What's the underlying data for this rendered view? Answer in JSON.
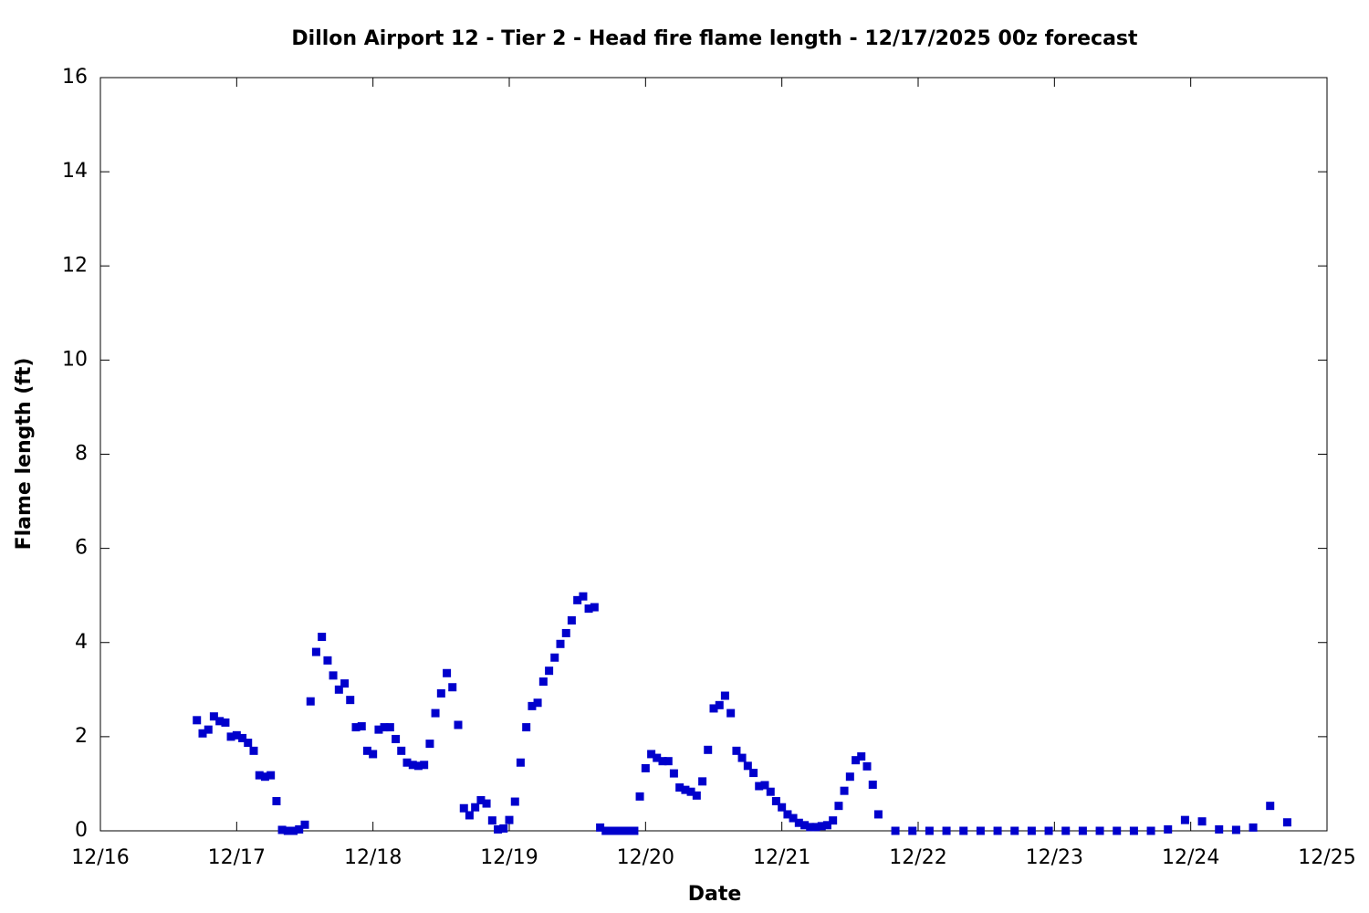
{
  "chart_data": {
    "type": "scatter",
    "title": "Dillon Airport 12 - Tier 2 - Head fire flame length - 12/17/2025 00z forecast",
    "x_label": "Date",
    "y_label": "Flame length (ft)",
    "color": "#0000cc",
    "xlim": [
      16,
      25
    ],
    "xticks": [
      {
        "value": 16,
        "label": "12/16"
      },
      {
        "value": 17,
        "label": "12/17"
      },
      {
        "value": 18,
        "label": "12/18"
      },
      {
        "value": 19,
        "label": "12/19"
      },
      {
        "value": 20,
        "label": "12/20"
      },
      {
        "value": 21,
        "label": "12/21"
      },
      {
        "value": 22,
        "label": "12/22"
      },
      {
        "value": 23,
        "label": "12/23"
      },
      {
        "value": 24,
        "label": "12/24"
      },
      {
        "value": 25,
        "label": "12/25"
      }
    ],
    "ylim": [
      0,
      16
    ],
    "yticks": [
      0,
      2,
      4,
      6,
      8,
      10,
      12,
      14,
      16
    ],
    "grid": false,
    "x": [
      16.708,
      16.75,
      16.792,
      16.833,
      16.875,
      16.917,
      16.958,
      17,
      17.042,
      17.083,
      17.125,
      17.167,
      17.208,
      17.25,
      17.292,
      17.333,
      17.375,
      17.417,
      17.458,
      17.5,
      17.542,
      17.583,
      17.625,
      17.667,
      17.708,
      17.75,
      17.792,
      17.833,
      17.875,
      17.917,
      17.958,
      18,
      18.042,
      18.083,
      18.125,
      18.167,
      18.208,
      18.25,
      18.292,
      18.333,
      18.375,
      18.417,
      18.458,
      18.5,
      18.542,
      18.583,
      18.625,
      18.667,
      18.708,
      18.75,
      18.792,
      18.833,
      18.875,
      18.917,
      18.958,
      19,
      19.042,
      19.083,
      19.125,
      19.167,
      19.208,
      19.25,
      19.292,
      19.333,
      19.375,
      19.417,
      19.458,
      19.5,
      19.542,
      19.583,
      19.625,
      19.667,
      19.708,
      19.75,
      19.792,
      19.833,
      19.875,
      19.917,
      19.958,
      20,
      20.042,
      20.083,
      20.125,
      20.167,
      20.208,
      20.25,
      20.292,
      20.333,
      20.375,
      20.417,
      20.458,
      20.5,
      20.542,
      20.583,
      20.625,
      20.667,
      20.708,
      20.75,
      20.792,
      20.833,
      20.875,
      20.917,
      20.958,
      21,
      21.042,
      21.083,
      21.125,
      21.167,
      21.208,
      21.25,
      21.292,
      21.333,
      21.375,
      21.417,
      21.458,
      21.5,
      21.542,
      21.583,
      21.625,
      21.667,
      21.708,
      21.833,
      21.958,
      22.083,
      22.208,
      22.333,
      22.458,
      22.583,
      22.708,
      22.833,
      22.958,
      23.083,
      23.208,
      23.333,
      23.458,
      23.583,
      23.708,
      23.833,
      23.958,
      24.083,
      24.208,
      24.333,
      24.458,
      24.583,
      24.708
    ],
    "values": [
      2.35,
      2.07,
      2.15,
      2.43,
      2.33,
      2.3,
      2.0,
      2.03,
      1.97,
      1.87,
      1.7,
      1.18,
      1.15,
      1.18,
      0.63,
      0.02,
      0,
      0,
      0.03,
      0.13,
      2.75,
      3.8,
      4.12,
      3.62,
      3.3,
      3.0,
      3.13,
      2.78,
      2.2,
      2.22,
      1.7,
      1.63,
      2.15,
      2.2,
      2.2,
      1.95,
      1.7,
      1.45,
      1.4,
      1.38,
      1.4,
      1.85,
      2.5,
      2.92,
      3.35,
      3.05,
      2.25,
      0.48,
      0.33,
      0.5,
      0.65,
      0.58,
      0.22,
      0.03,
      0.05,
      0.23,
      0.62,
      1.45,
      2.2,
      2.65,
      2.72,
      3.17,
      3.4,
      3.68,
      3.97,
      4.2,
      4.47,
      4.9,
      4.98,
      4.72,
      4.75,
      0.07,
      0,
      0,
      0,
      0,
      0,
      0,
      0.73,
      1.33,
      1.63,
      1.55,
      1.48,
      1.48,
      1.22,
      0.92,
      0.87,
      0.83,
      0.75,
      1.05,
      1.72,
      2.6,
      2.67,
      2.87,
      2.5,
      1.7,
      1.55,
      1.38,
      1.23,
      0.95,
      0.97,
      0.83,
      0.63,
      0.5,
      0.35,
      0.27,
      0.17,
      0.12,
      0.08,
      0.08,
      0.1,
      0.12,
      0.22,
      0.53,
      0.85,
      1.15,
      1.5,
      1.58,
      1.37,
      0.98,
      0.35,
      0,
      0,
      0,
      0,
      0,
      0,
      0,
      0,
      0,
      0,
      0,
      0,
      0,
      0,
      0,
      0,
      0.03,
      0.23,
      0.2,
      0.03,
      0.02,
      0.07,
      0.53,
      0.18
    ]
  }
}
